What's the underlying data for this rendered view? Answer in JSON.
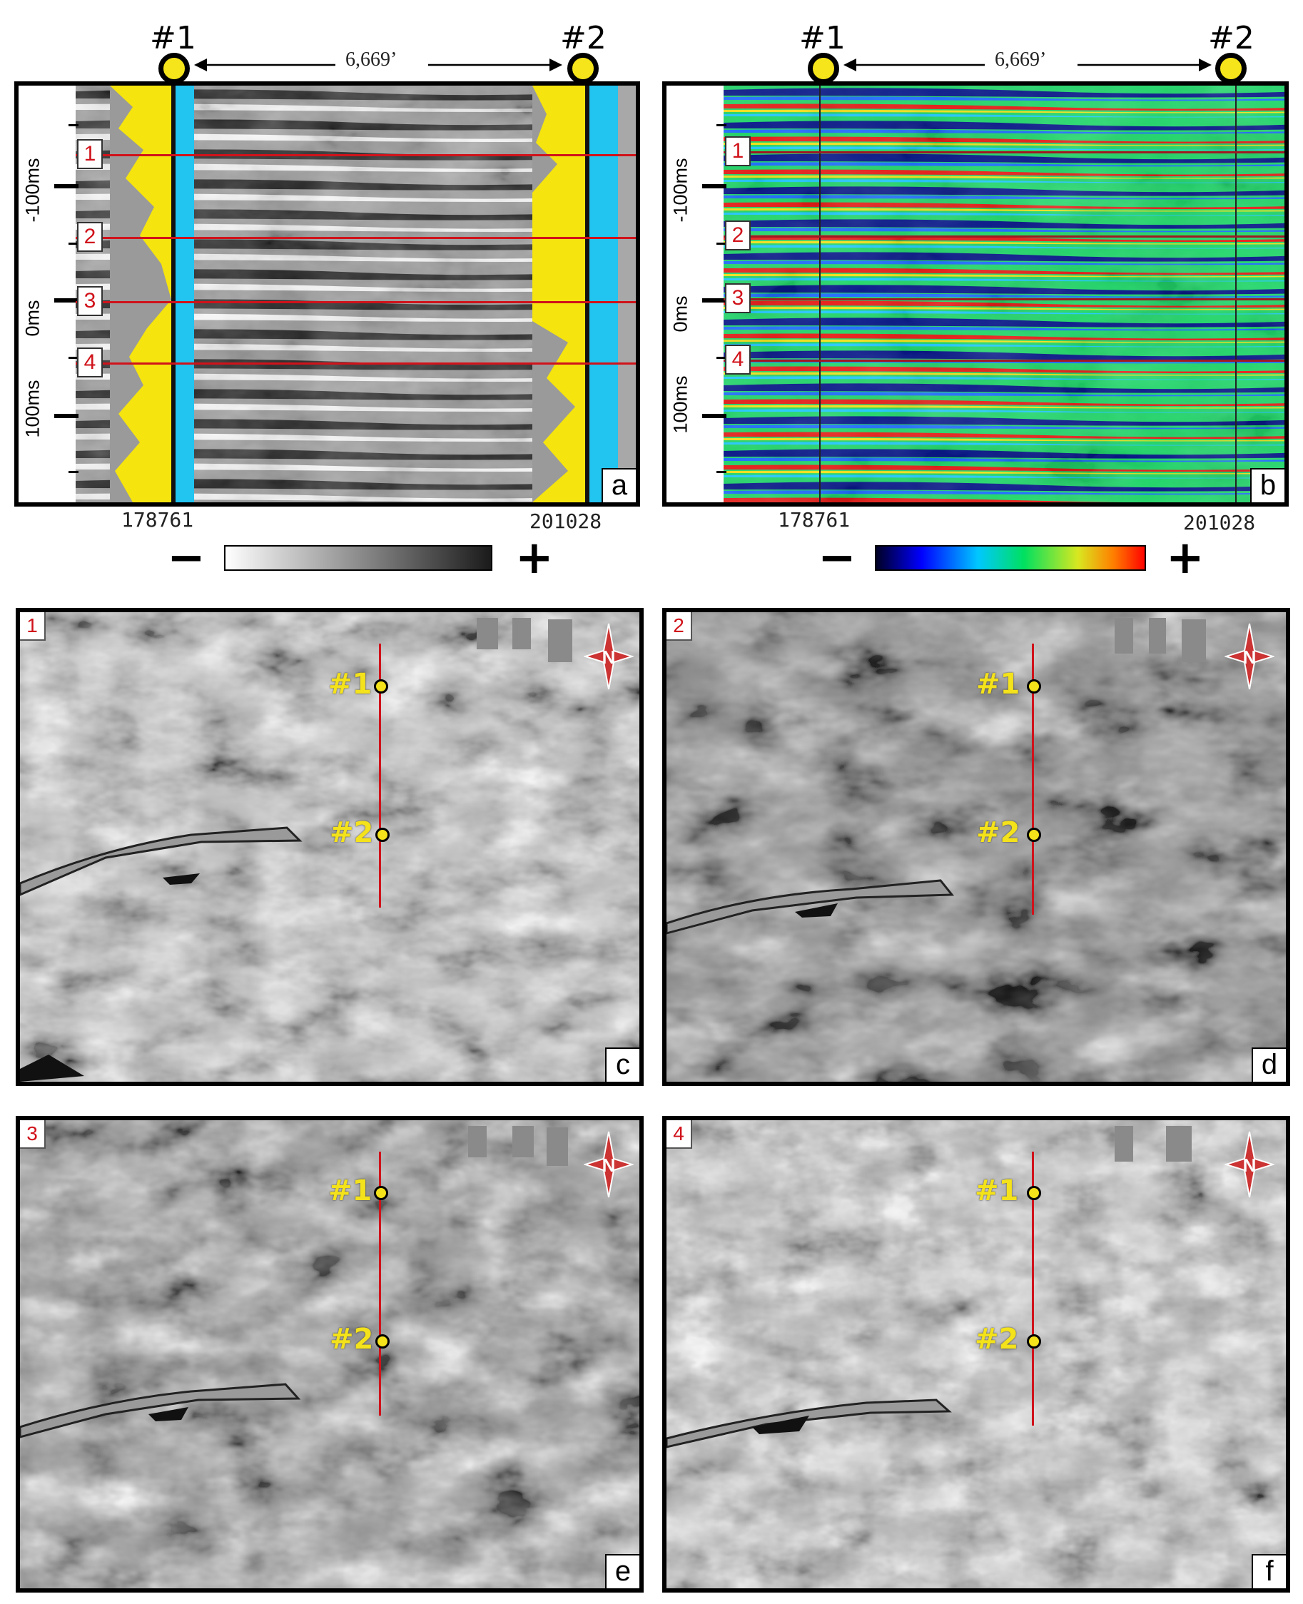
{
  "seismic_header": {
    "well1_label": "#1",
    "well2_label": "#2",
    "distance": "6,669’"
  },
  "panel_a": {
    "corner_label": "a",
    "time_labels": [
      "-100ms",
      "0ms",
      "100ms"
    ],
    "horizons": [
      "1",
      "2",
      "3",
      "4"
    ],
    "cdp_left": "178761",
    "cdp_right": "201028",
    "colorbar": {
      "minus": "−",
      "plus": "+",
      "colors": [
        "#ffffff",
        "#1a1a1a"
      ]
    }
  },
  "panel_b": {
    "corner_label": "b",
    "time_labels": [
      "-100ms",
      "0ms",
      "100ms"
    ],
    "horizons": [
      "1",
      "2",
      "3",
      "4"
    ],
    "cdp_left": "178761",
    "cdp_right": "201028",
    "colorbar": {
      "minus": "−",
      "plus": "+",
      "colors": [
        "#000022",
        "#0000ff",
        "#00c8ff",
        "#00e060",
        "#d8e820",
        "#ff8000",
        "#ff0000"
      ]
    }
  },
  "maps": [
    {
      "horizon": "1",
      "corner_label": "c",
      "well1": "#1",
      "well2": "#2",
      "compass": "N-arrow-icon"
    },
    {
      "horizon": "2",
      "corner_label": "d",
      "well1": "#1",
      "well2": "#2",
      "compass": "N-arrow-icon"
    },
    {
      "horizon": "3",
      "corner_label": "e",
      "well1": "#1",
      "well2": "#2",
      "compass": "N-arrow-icon"
    },
    {
      "horizon": "4",
      "corner_label": "f",
      "well1": "#1",
      "well2": "#2",
      "compass": "N-arrow-icon"
    }
  ],
  "compass_letter": "N"
}
